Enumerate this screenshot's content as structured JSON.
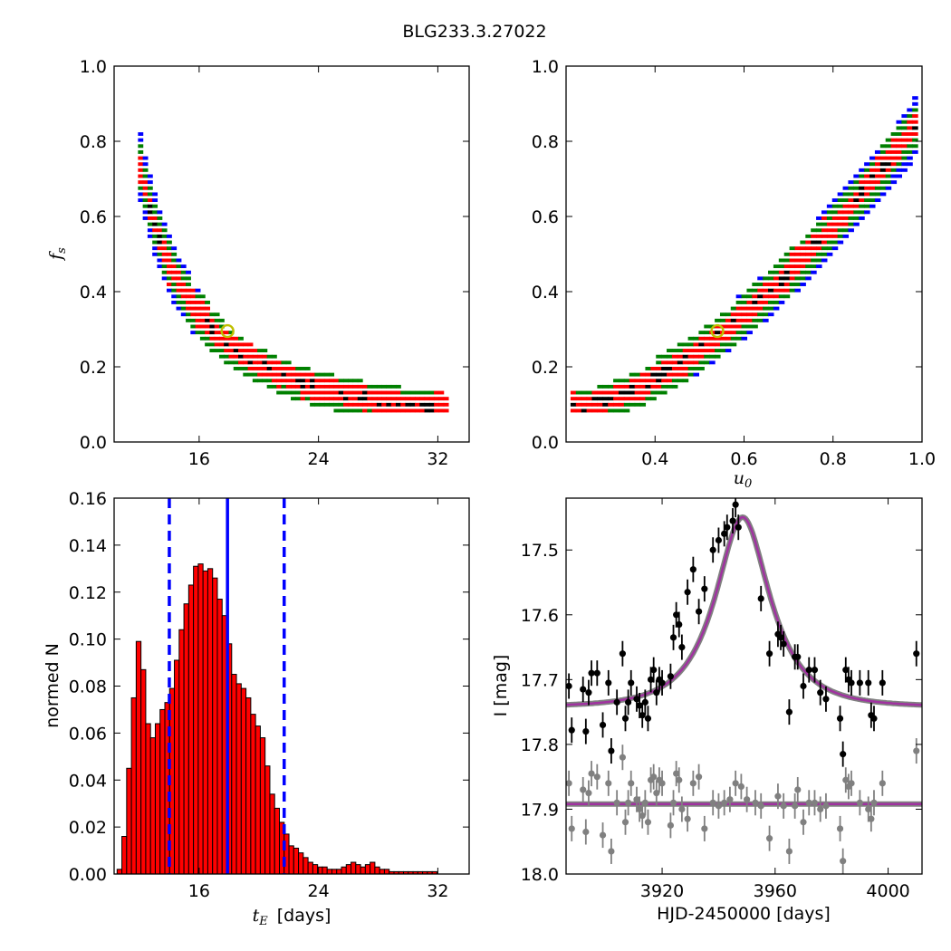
{
  "figure_title": "BLG233.3.27022",
  "colors": {
    "level1": "#0000ff",
    "level2": "#008000",
    "level3": "#ff0000",
    "peak": "#000000",
    "marker_edge": "#bfbf00",
    "hist_bar": "#ff0000",
    "hist_vline": "#0000ff",
    "model_line": "#a032a0",
    "model_under": "#808080",
    "data_black": "#000000",
    "data_gray": "#808080"
  },
  "chart_data": [
    {
      "id": "fs-vs-tE",
      "type": "heatmap",
      "title": "",
      "xlabel": "",
      "ylabel": "f_s",
      "ylabel_base": "f",
      "ylabel_sub": "s",
      "xlim": [
        10.3,
        34.1
      ],
      "ylim": [
        0.0,
        1.0
      ],
      "xticks": [
        16,
        24,
        32
      ],
      "yticks": [
        0.0,
        0.2,
        0.4,
        0.6,
        0.8,
        1.0
      ],
      "xtick_labels": [
        "16",
        "24",
        "32"
      ],
      "ytick_labels": [
        "0.0",
        "0.2",
        "0.4",
        "0.6",
        "0.8",
        "1.0"
      ],
      "model": "fs = 6.58 / (tE - 6.8)^1.35",
      "band": {
        "x_from": 11.9,
        "x_to": 32.6,
        "x_step": 0.32,
        "y_step": 0.016
      },
      "best_fit": {
        "tE": 17.9,
        "fs": 0.295
      }
    },
    {
      "id": "fs-vs-u0",
      "type": "heatmap",
      "title": "",
      "xlabel": "u_0",
      "xlabel_base": "u",
      "xlabel_sub": "0",
      "ylabel": "",
      "xlim": [
        0.2,
        1.0
      ],
      "ylim": [
        0.0,
        1.0
      ],
      "xticks": [
        0.4,
        0.6,
        0.8,
        1.0
      ],
      "yticks": [
        0.0,
        0.2,
        0.4,
        0.6,
        0.8,
        1.0
      ],
      "xtick_labels": [
        "0.4",
        "0.6",
        "0.8",
        "1.0"
      ],
      "ytick_labels": [
        "0.0",
        "0.2",
        "0.4",
        "0.6",
        "0.8",
        "1.0"
      ],
      "model": "fs = 0.09 + 0.78 * ((u0 - 0.21)/0.79)^1.6",
      "band": {
        "x_from": 0.21,
        "x_to": 1.0,
        "x_step": 0.012,
        "y_step": 0.016
      },
      "best_fit": {
        "u0": 0.54,
        "fs": 0.295
      }
    },
    {
      "id": "tE-histogram",
      "type": "bar",
      "title": "",
      "xlabel": "t_E  [days]",
      "xlabel_base": "t",
      "xlabel_sub": "E",
      "xlabel_rest": "[days]",
      "ylabel": "normed N",
      "xlim": [
        10.3,
        34.1
      ],
      "ylim": [
        0.0,
        0.16
      ],
      "xticks": [
        16,
        24,
        32
      ],
      "yticks": [
        0.0,
        0.02,
        0.04,
        0.06,
        0.08,
        0.1,
        0.12,
        0.14,
        0.16
      ],
      "xtick_labels": [
        "16",
        "24",
        "32"
      ],
      "ytick_labels": [
        "0.00",
        "0.02",
        "0.04",
        "0.06",
        "0.08",
        "0.10",
        "0.12",
        "0.14",
        "0.16"
      ],
      "bin_start": 10.5,
      "bin_width": 0.32,
      "values": [
        0.002,
        0.016,
        0.045,
        0.075,
        0.099,
        0.087,
        0.064,
        0.058,
        0.064,
        0.07,
        0.073,
        0.079,
        0.091,
        0.104,
        0.115,
        0.123,
        0.131,
        0.132,
        0.129,
        0.13,
        0.126,
        0.117,
        0.11,
        0.098,
        0.085,
        0.081,
        0.079,
        0.075,
        0.068,
        0.063,
        0.058,
        0.046,
        0.034,
        0.028,
        0.022,
        0.017,
        0.012,
        0.011,
        0.009,
        0.007,
        0.005,
        0.004,
        0.003,
        0.003,
        0.002,
        0.002,
        0.002,
        0.003,
        0.004,
        0.005,
        0.004,
        0.003,
        0.004,
        0.005,
        0.003,
        0.002,
        0.002,
        0.001,
        0.001,
        0.001,
        0.001,
        0.001,
        0.001,
        0.001,
        0.001,
        0.001,
        0.001
      ],
      "vlines": [
        {
          "x": 14.0,
          "style": "dashed"
        },
        {
          "x": 17.9,
          "style": "solid"
        },
        {
          "x": 21.7,
          "style": "dashed"
        }
      ]
    },
    {
      "id": "light-curve",
      "type": "scatter",
      "title": "",
      "xlabel": "HJD-2450000 [days]",
      "ylabel": "I [mag]",
      "xlim": [
        3886,
        4012
      ],
      "ylim": [
        18.0,
        17.42
      ],
      "y_inverted": true,
      "xticks": [
        3920,
        3960,
        4000
      ],
      "yticks": [
        17.5,
        17.6,
        17.7,
        17.8,
        17.9,
        18.0
      ],
      "xtick_labels": [
        "3920",
        "3960",
        "4000"
      ],
      "ytick_labels": [
        "17.5",
        "17.6",
        "17.7",
        "17.8",
        "17.9",
        "18.0"
      ],
      "model": {
        "t0": 3948.5,
        "u0": 0.54,
        "tE": 17.9,
        "fs": 0.295,
        "I_base": 17.742
      },
      "gray_baseline": 17.892,
      "series": [
        {
          "name": "",
          "color": "data_black",
          "points": [
            [
              3887,
              17.71
            ],
            [
              3888,
              17.778
            ],
            [
              3892,
              17.715
            ],
            [
              3893,
              17.78
            ],
            [
              3894,
              17.72
            ],
            [
              3895,
              17.69
            ],
            [
              3897,
              17.69
            ],
            [
              3899,
              17.77
            ],
            [
              3901,
              17.705
            ],
            [
              3902,
              17.81
            ],
            [
              3904,
              17.735
            ],
            [
              3906,
              17.66
            ],
            [
              3907,
              17.76
            ],
            [
              3908,
              17.735
            ],
            [
              3909,
              17.705
            ],
            [
              3911,
              17.73
            ],
            [
              3912,
              17.74
            ],
            [
              3913,
              17.755
            ],
            [
              3914,
              17.735
            ],
            [
              3915,
              17.76
            ],
            [
              3916,
              17.7
            ],
            [
              3917,
              17.685
            ],
            [
              3918,
              17.72
            ],
            [
              3919,
              17.7
            ],
            [
              3920,
              17.705
            ],
            [
              3923,
              17.695
            ],
            [
              3924,
              17.635
            ],
            [
              3925,
              17.6
            ],
            [
              3926,
              17.615
            ],
            [
              3927,
              17.65
            ],
            [
              3929,
              17.565
            ],
            [
              3931,
              17.53
            ],
            [
              3933,
              17.595
            ],
            [
              3935,
              17.56
            ],
            [
              3938,
              17.5
            ],
            [
              3940,
              17.485
            ],
            [
              3942,
              17.475
            ],
            [
              3943,
              17.465
            ],
            [
              3945,
              17.455
            ],
            [
              3946,
              17.43
            ],
            [
              3947,
              17.465
            ],
            [
              3955,
              17.575
            ],
            [
              3958,
              17.66
            ],
            [
              3961,
              17.63
            ],
            [
              3962,
              17.635
            ],
            [
              3963,
              17.645
            ],
            [
              3965,
              17.75
            ],
            [
              3967,
              17.665
            ],
            [
              3968,
              17.665
            ],
            [
              3970,
              17.71
            ],
            [
              3972,
              17.685
            ],
            [
              3974,
              17.685
            ],
            [
              3976,
              17.72
            ],
            [
              3978,
              17.73
            ],
            [
              3983,
              17.76
            ],
            [
              3984,
              17.815
            ],
            [
              3985,
              17.685
            ],
            [
              3986,
              17.7
            ],
            [
              3987,
              17.705
            ],
            [
              3990,
              17.705
            ],
            [
              3993,
              17.705
            ],
            [
              3994,
              17.755
            ],
            [
              3995,
              17.76
            ],
            [
              3998,
              17.705
            ],
            [
              4010,
              17.66
            ]
          ]
        },
        {
          "name": "",
          "color": "data_gray",
          "points": [
            [
              3887,
              17.86
            ],
            [
              3888,
              17.93
            ],
            [
              3892,
              17.87
            ],
            [
              3893,
              17.935
            ],
            [
              3894,
              17.875
            ],
            [
              3895,
              17.845
            ],
            [
              3897,
              17.85
            ],
            [
              3899,
              17.94
            ],
            [
              3901,
              17.86
            ],
            [
              3902,
              17.965
            ],
            [
              3904,
              17.89
            ],
            [
              3906,
              17.82
            ],
            [
              3907,
              17.92
            ],
            [
              3908,
              17.89
            ],
            [
              3909,
              17.86
            ],
            [
              3911,
              17.885
            ],
            [
              3912,
              17.9
            ],
            [
              3913,
              17.91
            ],
            [
              3914,
              17.89
            ],
            [
              3915,
              17.92
            ],
            [
              3916,
              17.855
            ],
            [
              3917,
              17.85
            ],
            [
              3918,
              17.875
            ],
            [
              3919,
              17.855
            ],
            [
              3920,
              17.86
            ],
            [
              3923,
              17.925
            ],
            [
              3924,
              17.89
            ],
            [
              3925,
              17.845
            ],
            [
              3926,
              17.855
            ],
            [
              3927,
              17.9
            ],
            [
              3929,
              17.915
            ],
            [
              3931,
              17.86
            ],
            [
              3933,
              17.85
            ],
            [
              3935,
              17.93
            ],
            [
              3938,
              17.89
            ],
            [
              3940,
              17.895
            ],
            [
              3942,
              17.89
            ],
            [
              3944,
              17.885
            ],
            [
              3946,
              17.86
            ],
            [
              3948,
              17.865
            ],
            [
              3950,
              17.885
            ],
            [
              3953,
              17.89
            ],
            [
              3955,
              17.895
            ],
            [
              3958,
              17.945
            ],
            [
              3961,
              17.88
            ],
            [
              3963,
              17.895
            ],
            [
              3965,
              17.965
            ],
            [
              3967,
              17.895
            ],
            [
              3968,
              17.87
            ],
            [
              3970,
              17.92
            ],
            [
              3972,
              17.89
            ],
            [
              3974,
              17.89
            ],
            [
              3976,
              17.9
            ],
            [
              3978,
              17.895
            ],
            [
              3983,
              17.93
            ],
            [
              3984,
              17.98
            ],
            [
              3985,
              17.855
            ],
            [
              3986,
              17.865
            ],
            [
              3987,
              17.86
            ],
            [
              3990,
              17.89
            ],
            [
              3993,
              17.9
            ],
            [
              3994,
              17.915
            ],
            [
              3995,
              17.89
            ],
            [
              3998,
              17.86
            ],
            [
              4010,
              17.81
            ]
          ]
        }
      ]
    }
  ]
}
